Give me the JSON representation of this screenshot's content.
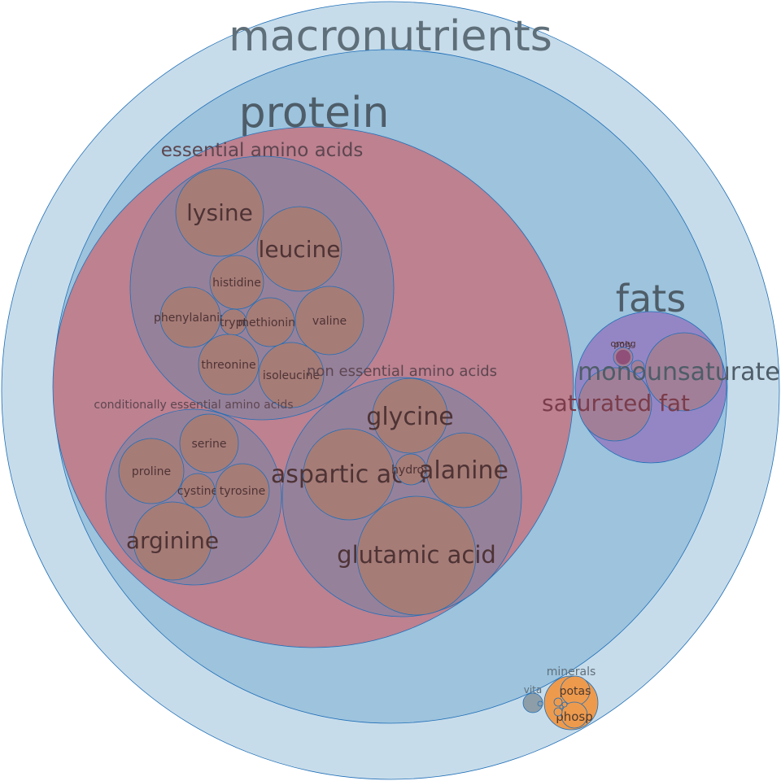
{
  "chart": {
    "macronutrients": "macronutrients",
    "protein": "protein",
    "essential_amino_acids": "essential amino acids",
    "conditionally_essential_amino_acids": "conditionally essential amino acids",
    "non_essential_amino_acids": "non essential amino acids",
    "fats": "fats",
    "minerals": "minerals",
    "vitamins_short": "vita",
    "amino": {
      "lysine": "lysine",
      "leucine": "leucine",
      "histidine": "histidine",
      "phenylalanine": "phenylalanin",
      "tryptophan": "trypt",
      "methionine": "methionine",
      "valine": "valine",
      "threonine": "threonine",
      "isoleucine": "isoleucine",
      "serine": "serine",
      "proline": "proline",
      "cystine": "cystine",
      "tyrosine": "tyrosine",
      "arginine": "arginine",
      "glycine": "glycine",
      "aspartic_acid": "aspartic acid",
      "hydroxyproline": "hydrox",
      "alanine": "alanine",
      "glutamic_acid": "glutamic acid"
    },
    "fat_parts": {
      "monounsaturated": "monounsaturated",
      "saturated_fat": "saturated fat",
      "omega": "omeg",
      "polyunsaturated": "poly"
    },
    "mineral_parts": {
      "potassium": "potas",
      "phosphorus": "phosp"
    },
    "colors": {
      "macronutrients": "#c7dcea",
      "protein": "#9dc3dd",
      "amino_acids": "#bd8190",
      "amino_groups": "#96819b",
      "amino_leaf": "#a67c77",
      "fats": "#9486c4",
      "fat_leaf": "#a27f99",
      "minerals": "#ee9a4d",
      "vitamins": "#8e9ea8",
      "stroke": "#1f6fb8"
    }
  }
}
